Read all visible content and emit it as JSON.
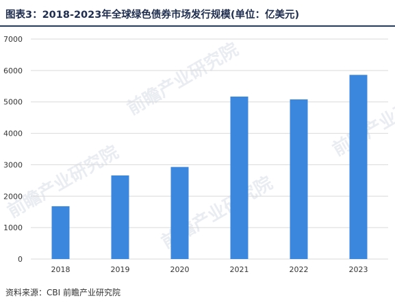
{
  "header": {
    "title": "图表3：2018-2023年全球绿色债券市场发行规模(单位：亿美元)"
  },
  "footer": {
    "source": "资料来源：CBI 前瞻产业研究院"
  },
  "watermark": {
    "text": "前瞻产业研究院"
  },
  "colors": {
    "bar": "#3b87dd",
    "grid": "#d9d9d9",
    "axis_text": "#333333"
  },
  "chart_data": {
    "type": "bar",
    "title": "图表3：2018-2023年全球绿色债券市场发行规模(单位：亿美元)",
    "categories": [
      "2018",
      "2019",
      "2020",
      "2021",
      "2022",
      "2023"
    ],
    "values": [
      1680,
      2660,
      2930,
      5170,
      5080,
      5860
    ],
    "ylim": [
      0,
      7000
    ],
    "yticks": [
      0,
      1000,
      2000,
      3000,
      4000,
      5000,
      6000,
      7000
    ],
    "grid": true,
    "legend": "none"
  }
}
